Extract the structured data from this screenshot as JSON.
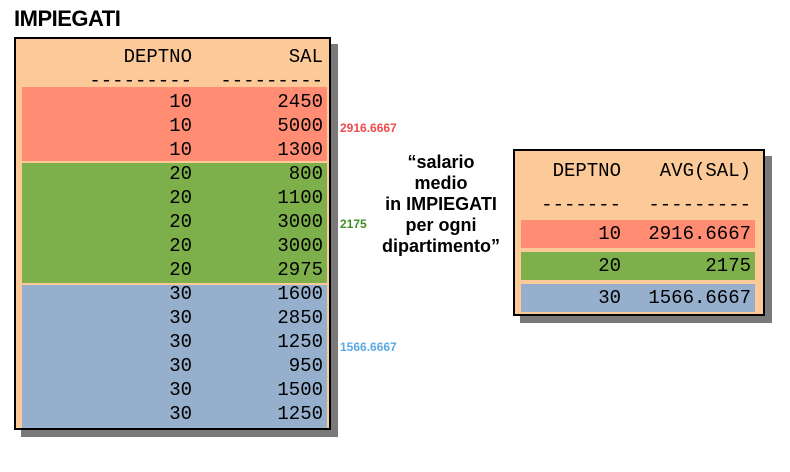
{
  "left_table": {
    "title": "IMPIEGATI",
    "headers": [
      "DEPTNO",
      "SAL"
    ],
    "dashes": [
      "---------",
      "---------"
    ],
    "rows": [
      {
        "deptno": "10",
        "sal": "2450"
      },
      {
        "deptno": "10",
        "sal": "5000"
      },
      {
        "deptno": "10",
        "sal": "1300"
      },
      {
        "deptno": "20",
        "sal": "800"
      },
      {
        "deptno": "20",
        "sal": "1100"
      },
      {
        "deptno": "20",
        "sal": "3000"
      },
      {
        "deptno": "20",
        "sal": "3000"
      },
      {
        "deptno": "20",
        "sal": "2975"
      },
      {
        "deptno": "30",
        "sal": "1600"
      },
      {
        "deptno": "30",
        "sal": "2850"
      },
      {
        "deptno": "30",
        "sal": "1250"
      },
      {
        "deptno": "30",
        "sal": "950"
      },
      {
        "deptno": "30",
        "sal": "1500"
      },
      {
        "deptno": "30",
        "sal": "1250"
      }
    ]
  },
  "groups": [
    {
      "deptno": "10",
      "color": "#ff8c73",
      "annotation": "2916.6667",
      "annotation_color": "#f04a4a"
    },
    {
      "deptno": "20",
      "color": "#7db04a",
      "annotation": "2175",
      "annotation_color": "#3e8f1f"
    },
    {
      "deptno": "30",
      "color": "#95afcc",
      "annotation": "1566.6667",
      "annotation_color": "#5aaae6"
    }
  ],
  "caption": [
    "“salario",
    "medio",
    "in IMPIEGATI",
    "per ogni",
    "dipartimento”"
  ],
  "right_table": {
    "headers": [
      "DEPTNO",
      "AVG(SAL)"
    ],
    "dashes": [
      "-------",
      "---------"
    ],
    "rows": [
      {
        "deptno": "10",
        "avg": "2916.6667"
      },
      {
        "deptno": "20",
        "avg": "2175"
      },
      {
        "deptno": "30",
        "avg": "1566.6667"
      }
    ]
  },
  "colors": {
    "panel_bg": "#fcc998",
    "shadow": "#7a7a7a"
  }
}
